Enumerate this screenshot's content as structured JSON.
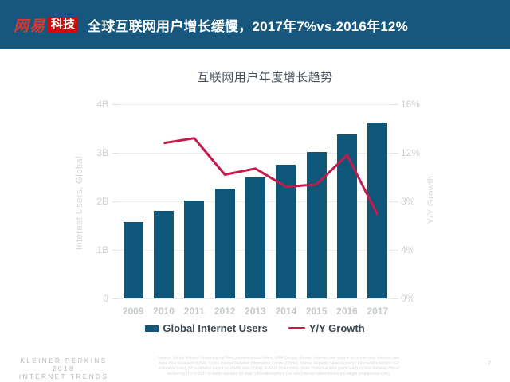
{
  "header": {
    "logo_netease": "网易",
    "logo_tech": "科技",
    "title": "全球互联网用户增长缓慢，2017年7%vs.2016年12%",
    "bg_color": "#17567d",
    "logo_red": "#cb0c0c",
    "logo_text_red": "#d8382e"
  },
  "chart_data": {
    "type": "bar",
    "title": "互联网用户年度增长趋势",
    "categories": [
      "2009",
      "2010",
      "2011",
      "2012",
      "2013",
      "2014",
      "2015",
      "2016",
      "2017"
    ],
    "series": [
      {
        "name": "Global Internet Users",
        "render": "bar",
        "axis": "left",
        "unit": "B",
        "values": [
          1.57,
          1.8,
          2.02,
          2.26,
          2.5,
          2.75,
          3.02,
          3.38,
          3.63
        ],
        "color": "#0e5778"
      },
      {
        "name": "Y/Y Growth",
        "render": "line",
        "axis": "right",
        "unit": "%",
        "x": [
          "2010",
          "2011",
          "2012",
          "2013",
          "2014",
          "2015",
          "2016",
          "2017"
        ],
        "values": [
          12.8,
          13.2,
          10.2,
          10.7,
          9.2,
          9.4,
          11.8,
          6.9
        ],
        "color": "#c51a4c"
      }
    ],
    "left_axis": {
      "label": "Internet Users, Global",
      "ticks": [
        "4B",
        "3B",
        "2B",
        "1B",
        "0"
      ],
      "min": 0,
      "max": 4
    },
    "right_axis": {
      "label": "Y/Y Growth",
      "ticks": [
        "16%",
        "12%",
        "8%",
        "4%",
        "0%"
      ],
      "min": 0,
      "max": 16
    },
    "grid": true,
    "legend_position": "bottom"
  },
  "legend": {
    "bar_label": "Global Internet Users",
    "line_label": "Y/Y Growth"
  },
  "footer": {
    "brand_line1": "KLEINER PERKINS",
    "brand_line2": "2018",
    "brand_line3": "INTERNET TRENDS",
    "source_lines": [
      "Source: United Nations / International Telecommunications Union, USA Census Bureau. Internet user data is as of mid-year. Internet user",
      "data: Pew Research (USA), China Internet Network Information Center (China), Islamic Republic News Agency / InternetWorldStats / KP",
      "estimates (Iran), KP estimates based on IAMAI data (India), & APJII (Indonesia).  Note: Historical data (particularly in Sub-Saharan Africa)",
      "revised by ITU in 2017 to better account for dual-SIM subscriptions (i.e. two Internet subscriptions per single smartphone user)."
    ],
    "page_number": "7"
  }
}
